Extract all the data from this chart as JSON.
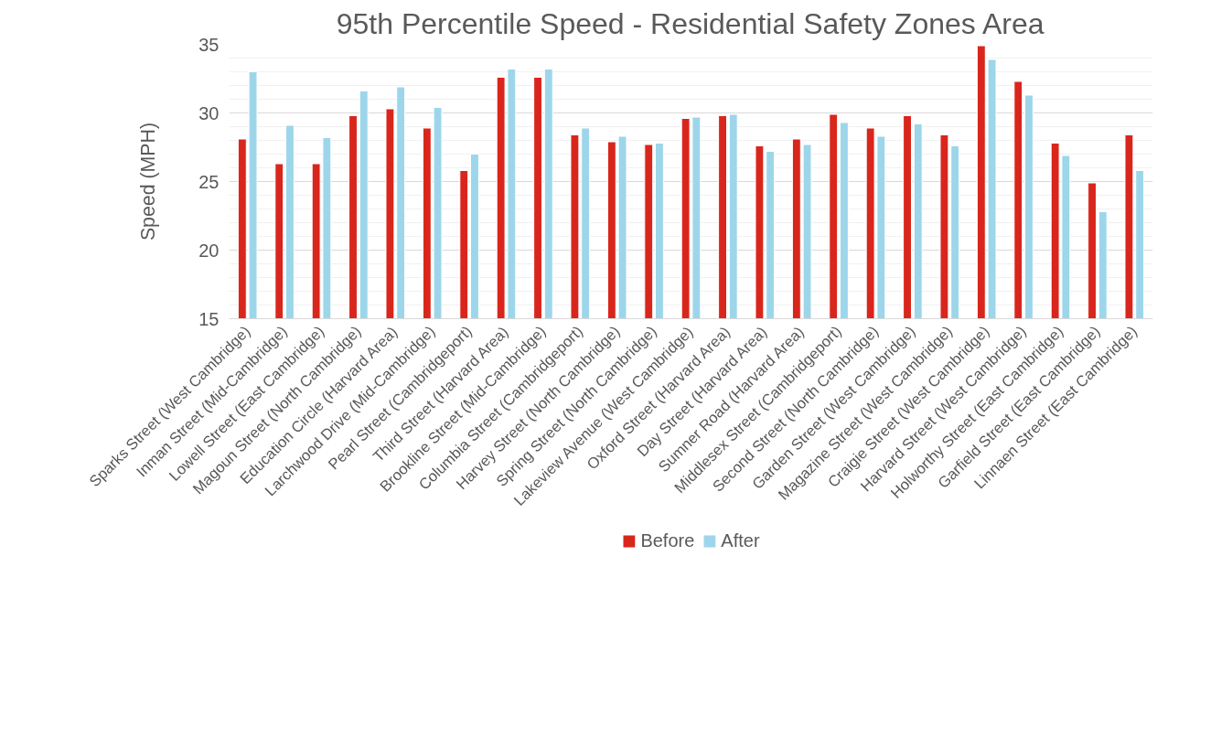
{
  "chart_data": {
    "type": "bar",
    "title": "95th Percentile Speed - Residential Safety Zones Area",
    "ylabel": "Speed (MPH)",
    "categories": [
      "Sparks Street (West Cambridge)",
      "Inman Street (Mid-Cambridge)",
      "Lowell Street (East Cambridge)",
      "Magoun Street (North Cambridge)",
      "Education Circle (Harvard Area)",
      "Larchwood Drive (Mid-Cambridge)",
      "Pearl Street (Cambridgeport)",
      "Third Street (Harvard Area)",
      "Brookline Street (Mid-Cambridge)",
      "Columbia Street (Cambridgeport)",
      "Harvey Street (North Cambridge)",
      "Spring Street (North Cambridge)",
      "Lakeview Avenue (West Cambridge)",
      "Oxford Street (Harvard Area)",
      "Day Street (Harvard Area)",
      "Sumner Road (Harvard Area)",
      "Middlesex Street (Cambridgeport)",
      "Second Street (North Cambridge)",
      "Garden Street (West Cambridge)",
      "Magazine Street (West Cambridge)",
      "Craigie Street (West Cambridge)",
      "Harvard Street (West Cambridge)",
      "Holworthy Street (East Cambridge)",
      "Garfield Street (East Cambridge)",
      "Linnaen Street (East Cambridge)"
    ],
    "series": [
      {
        "name": "Before",
        "color": "#d9261c",
        "values": [
          28.1,
          26.3,
          26.3,
          29.8,
          30.3,
          28.9,
          25.8,
          32.6,
          32.6,
          28.4,
          27.9,
          27.7,
          29.6,
          29.8,
          27.6,
          28.1,
          29.9,
          28.9,
          29.8,
          28.4,
          34.9,
          32.3,
          27.8,
          24.9,
          28.4
        ]
      },
      {
        "name": "After",
        "color": "#9dd6ea",
        "values": [
          33.0,
          29.1,
          28.2,
          31.6,
          31.9,
          30.4,
          27.0,
          33.2,
          33.2,
          28.9,
          28.3,
          27.8,
          29.7,
          29.9,
          27.2,
          27.7,
          29.3,
          28.3,
          29.2,
          27.6,
          33.9,
          31.3,
          26.9,
          22.8,
          25.8
        ]
      }
    ],
    "ylim": [
      15,
      35
    ],
    "yticks": [
      15,
      20,
      25,
      30,
      35
    ],
    "grid": "y",
    "legend": "bottom"
  }
}
